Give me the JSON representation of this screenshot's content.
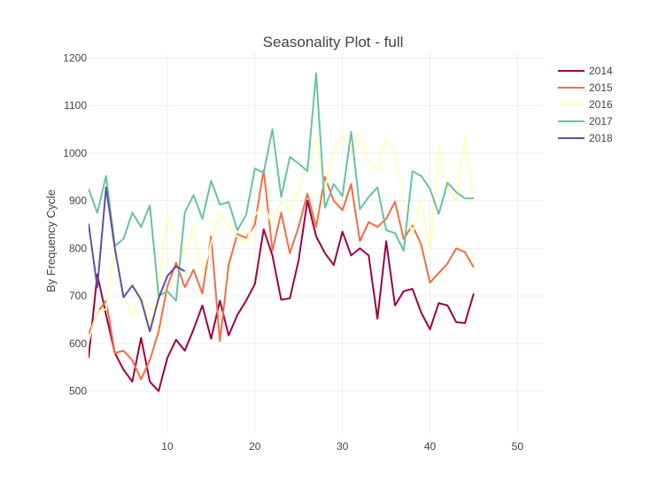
{
  "chart_data": {
    "type": "line",
    "title": "Seasonality Plot - full",
    "xlabel": "",
    "ylabel": "By Frequency Cycle",
    "xlim": [
      1,
      53
    ],
    "ylim": [
      410,
      1210
    ],
    "x_ticks": [
      10,
      20,
      30,
      40,
      50
    ],
    "y_ticks": [
      500,
      600,
      700,
      800,
      900,
      1000,
      1100,
      1200
    ],
    "grid": true,
    "legend_position": "top-right",
    "series": [
      {
        "name": "2014",
        "color": "#9e0142",
        "x": [
          1,
          2,
          3,
          4,
          5,
          6,
          7,
          8,
          9,
          10,
          11,
          12,
          13,
          14,
          15,
          16,
          17,
          18,
          19,
          20,
          21,
          22,
          23,
          24,
          25,
          26,
          27,
          28,
          29,
          30,
          31,
          32,
          33,
          34,
          35,
          36,
          37,
          38,
          39,
          40,
          41,
          42,
          43,
          44,
          45
        ],
        "y": [
          570,
          745,
          660,
          580,
          545,
          520,
          612,
          520,
          500,
          570,
          608,
          585,
          630,
          680,
          610,
          690,
          617,
          660,
          690,
          725,
          840,
          785,
          692,
          695,
          775,
          900,
          825,
          790,
          765,
          835,
          785,
          800,
          785,
          652,
          815,
          680,
          710,
          715,
          665,
          630,
          685,
          680,
          645,
          643,
          705
        ]
      },
      {
        "name": "2015",
        "color": "#f46d43",
        "x": [
          1,
          2,
          3,
          4,
          5,
          6,
          7,
          8,
          9,
          10,
          11,
          12,
          13,
          14,
          15,
          16,
          17,
          18,
          19,
          20,
          21,
          22,
          23,
          24,
          25,
          26,
          27,
          28,
          29,
          30,
          31,
          32,
          33,
          34,
          35,
          36,
          37,
          38,
          39,
          40,
          41,
          42,
          43,
          44,
          45
        ],
        "y": [
          620,
          665,
          690,
          580,
          585,
          565,
          525,
          565,
          625,
          720,
          770,
          718,
          755,
          705,
          825,
          605,
          765,
          830,
          822,
          850,
          965,
          795,
          875,
          790,
          845,
          915,
          845,
          950,
          900,
          880,
          935,
          815,
          855,
          845,
          862,
          898,
          820,
          848,
          808,
          728,
          748,
          768,
          800,
          792,
          760
        ]
      },
      {
        "name": "2016",
        "color": "#ffffbf",
        "x": [
          1,
          2,
          3,
          4,
          5,
          6,
          7,
          8,
          9,
          10,
          11,
          12,
          13,
          14,
          15,
          16,
          17,
          18,
          19,
          20,
          21,
          22,
          23,
          24,
          25,
          26,
          27,
          28,
          29,
          30,
          31,
          32,
          33,
          34,
          35,
          36,
          37,
          38,
          39,
          40,
          41,
          42,
          43,
          44,
          45
        ],
        "y": [
          605,
          668,
          672,
          800,
          700,
          660,
          705,
          640,
          720,
          865,
          830,
          785,
          850,
          745,
          810,
          875,
          845,
          825,
          810,
          870,
          890,
          850,
          900,
          880,
          925,
          975,
          1030,
          925,
          1000,
          1040,
          1000,
          1045,
          980,
          965,
          1030,
          1000,
          900,
          830,
          905,
          790,
          1015,
          925,
          900,
          1035,
          895
        ]
      },
      {
        "name": "2017",
        "color": "#66c2a5",
        "x": [
          1,
          2,
          3,
          4,
          5,
          6,
          7,
          8,
          9,
          10,
          11,
          12,
          13,
          14,
          15,
          16,
          17,
          18,
          19,
          20,
          21,
          22,
          23,
          24,
          25,
          26,
          27,
          28,
          29,
          30,
          31,
          32,
          33,
          34,
          35,
          36,
          37,
          38,
          39,
          40,
          41,
          42,
          43,
          44,
          45
        ],
        "y": [
          925,
          875,
          952,
          805,
          820,
          875,
          845,
          890,
          700,
          710,
          690,
          875,
          912,
          862,
          942,
          892,
          897,
          838,
          870,
          968,
          958,
          1050,
          908,
          992,
          978,
          962,
          1168,
          885,
          935,
          910,
          1045,
          882,
          908,
          928,
          838,
          832,
          795,
          962,
          952,
          925,
          872,
          938,
          918,
          905,
          905
        ]
      },
      {
        "name": "2018",
        "color": "#5e4fa2",
        "x": [
          1,
          2,
          3,
          4,
          5,
          6,
          7,
          8,
          9,
          10,
          11,
          12
        ],
        "y": [
          852,
          718,
          928,
          800,
          697,
          722,
          692,
          625,
          695,
          742,
          762,
          752
        ]
      }
    ]
  }
}
